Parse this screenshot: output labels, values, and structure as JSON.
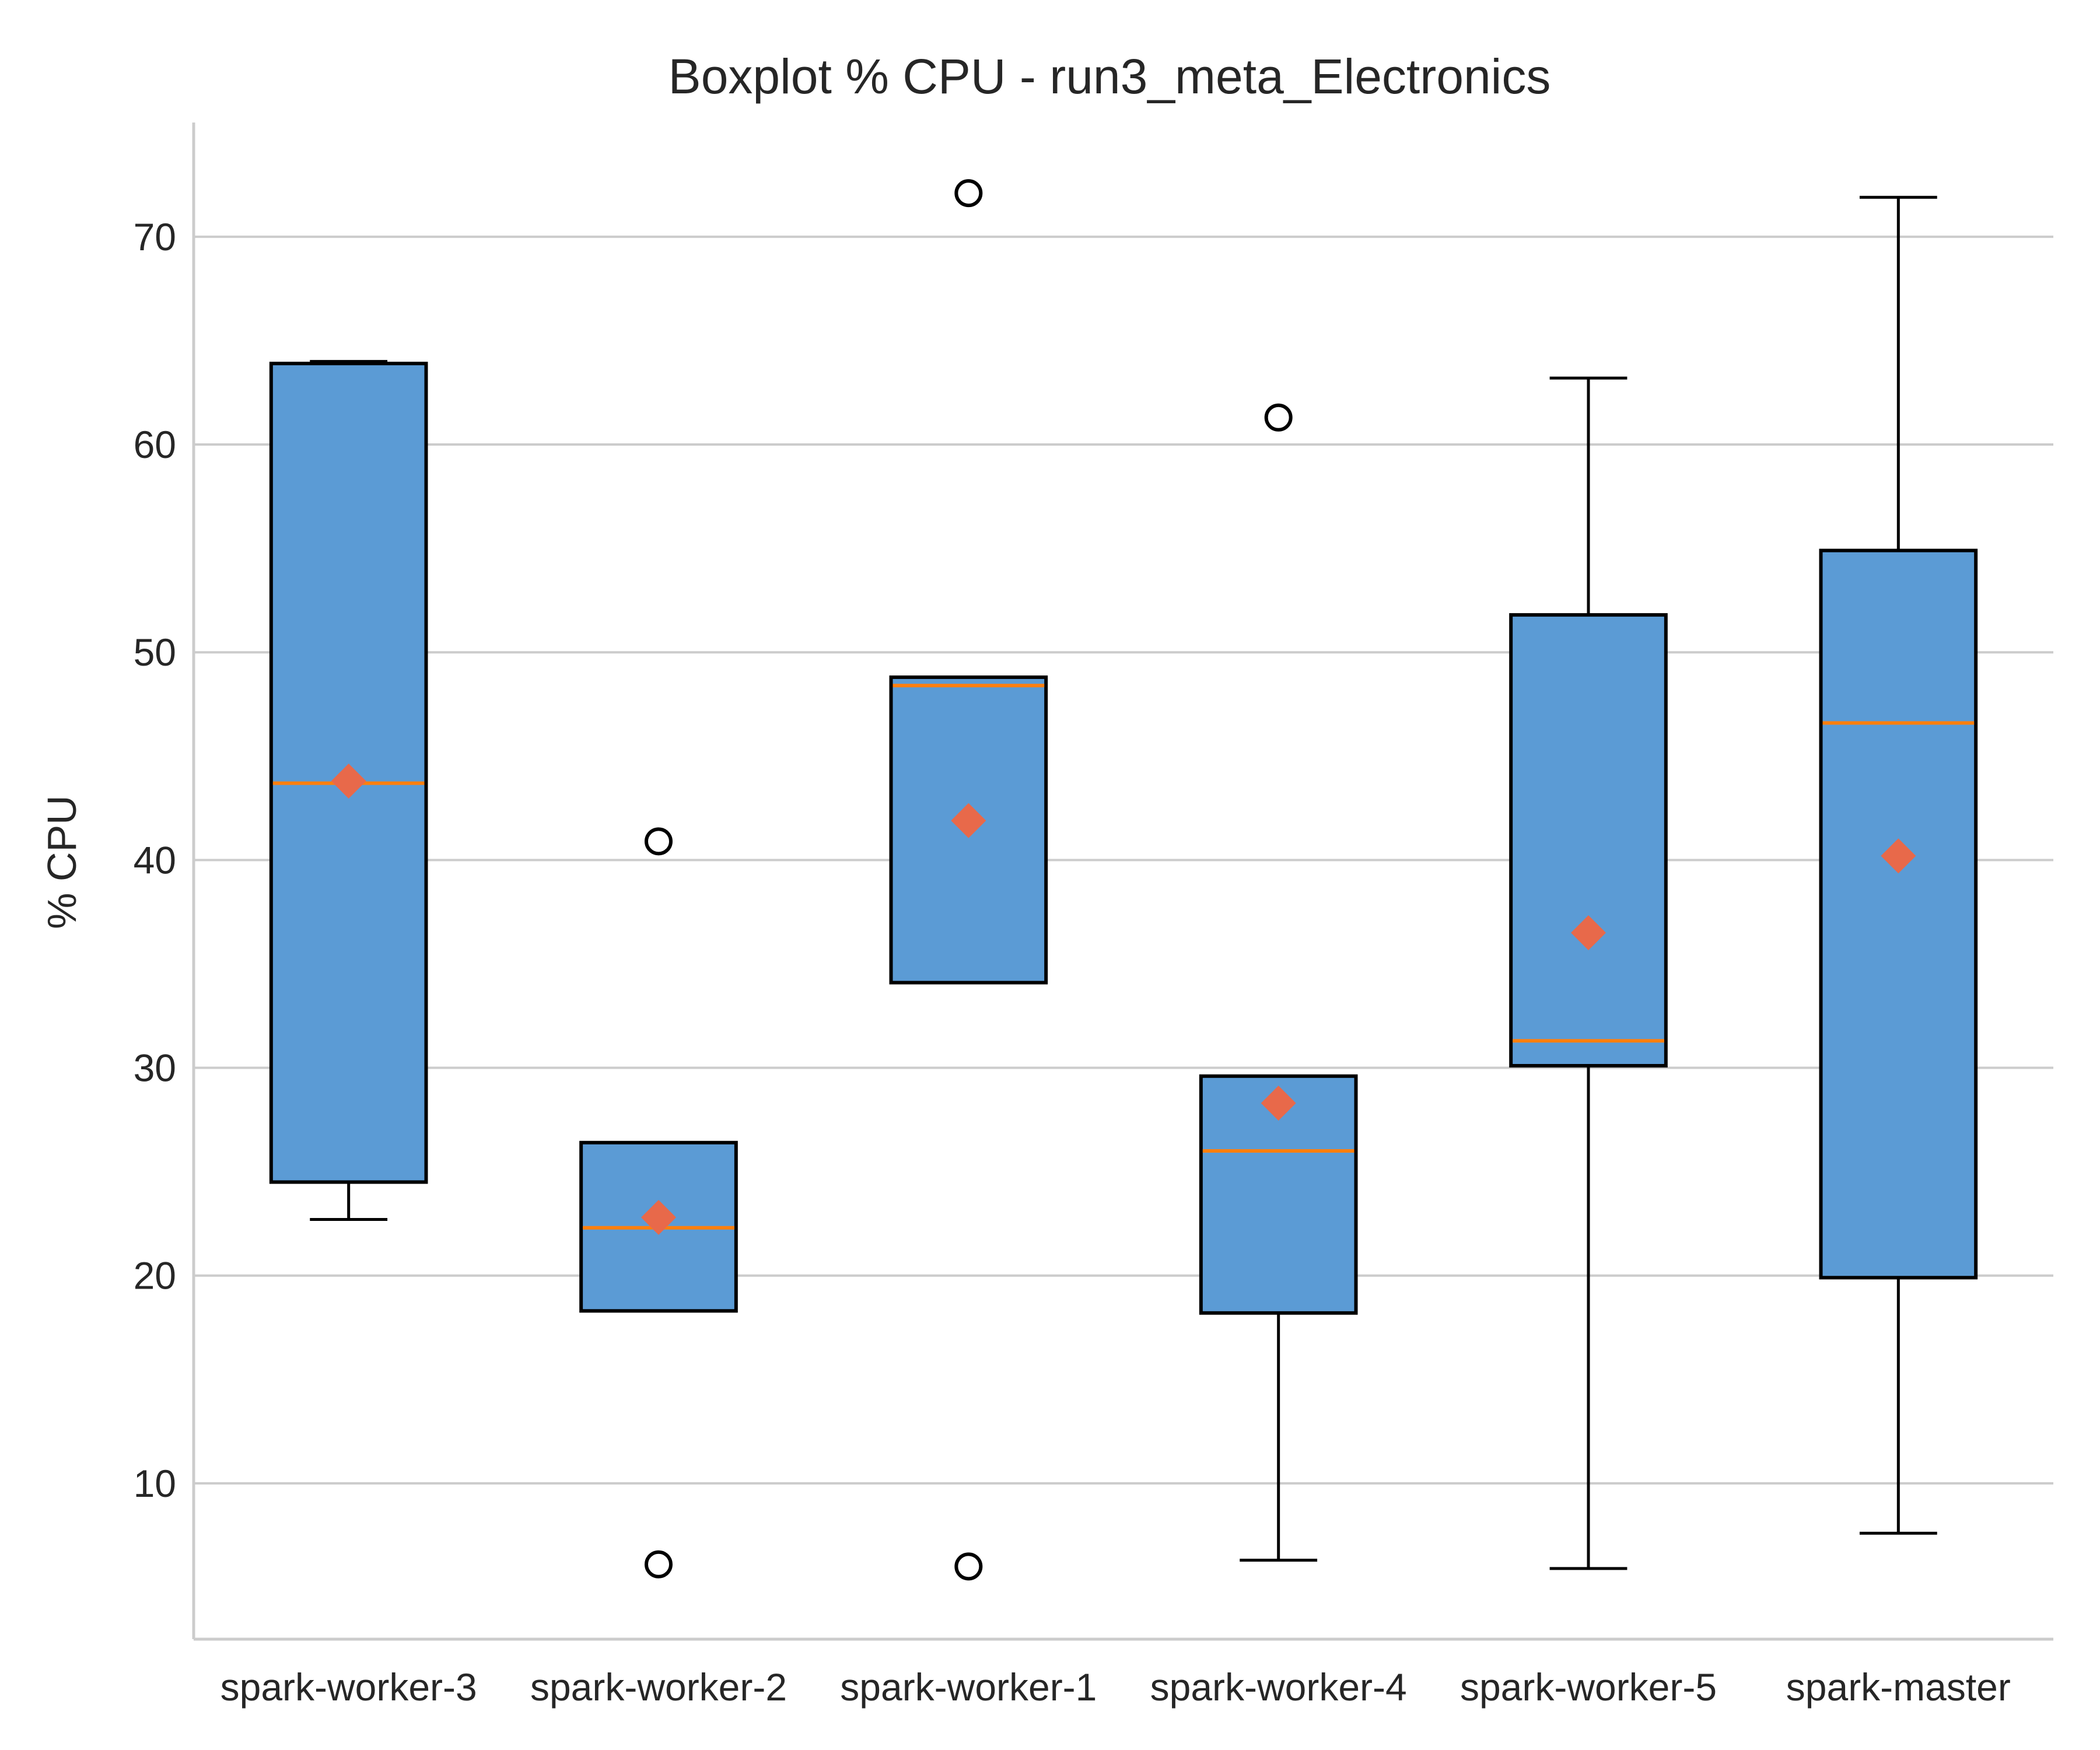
{
  "chart_data": {
    "type": "boxplot",
    "title": "Boxplot % CPU - run3_meta_Electronics",
    "xlabel": "",
    "ylabel": "% CPU",
    "ylim": [
      2.5,
      75.5
    ],
    "yticks": [
      10,
      20,
      30,
      40,
      50,
      60,
      70
    ],
    "grid": "y",
    "colors": {
      "box_fill": "#5b9bd5",
      "box_edge": "#000000",
      "median": "#ff7f0e",
      "mean_marker": "#e8694a",
      "grid": "#cccccc",
      "axis": "#cccccc"
    },
    "categories": [
      "spark-worker-3",
      "spark-worker-2",
      "spark-worker-1",
      "spark-worker-4",
      "spark-worker-5",
      "spark-master"
    ],
    "boxes": [
      {
        "q1": 24.5,
        "median": 43.7,
        "q3": 63.9,
        "whisker_low": 22.7,
        "whisker_high": 64.0,
        "mean": 43.8,
        "outliers": []
      },
      {
        "q1": 18.3,
        "median": 22.3,
        "q3": 26.4,
        "whisker_low": 18.3,
        "whisker_high": 26.4,
        "mean": 22.8,
        "outliers": [
          40.9,
          6.1
        ]
      },
      {
        "q1": 34.1,
        "median": 48.4,
        "q3": 48.8,
        "whisker_low": 34.1,
        "whisker_high": 48.8,
        "mean": 41.9,
        "outliers": [
          72.1,
          6.0
        ]
      },
      {
        "q1": 18.2,
        "median": 26.0,
        "q3": 29.6,
        "whisker_low": 6.3,
        "whisker_high": 29.6,
        "mean": 28.3,
        "outliers": [
          61.3
        ]
      },
      {
        "q1": 30.1,
        "median": 31.3,
        "q3": 51.8,
        "whisker_low": 5.9,
        "whisker_high": 63.2,
        "mean": 36.5,
        "outliers": []
      },
      {
        "q1": 19.9,
        "median": 46.6,
        "q3": 54.9,
        "whisker_low": 7.6,
        "whisker_high": 71.9,
        "mean": 40.2,
        "outliers": []
      }
    ]
  }
}
